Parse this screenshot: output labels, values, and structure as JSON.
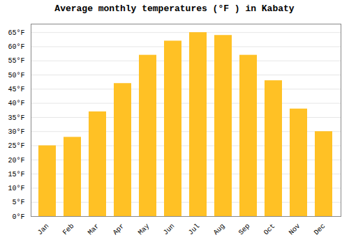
{
  "chart_data": {
    "type": "bar",
    "title": "Average monthly temperatures (°F ) in Kabaty",
    "categories": [
      "Jan",
      "Feb",
      "Mar",
      "Apr",
      "May",
      "Jun",
      "Jul",
      "Aug",
      "Sep",
      "Oct",
      "Nov",
      "Dec"
    ],
    "values": [
      25,
      28,
      37,
      47,
      57,
      62,
      65,
      64,
      57,
      48,
      38,
      30
    ],
    "color": "#FFC125",
    "ylim": [
      0,
      68
    ],
    "yticks": [
      {
        "value": 0,
        "label": "0°F"
      },
      {
        "value": 5,
        "label": "5°F"
      },
      {
        "value": 10,
        "label": "10°F"
      },
      {
        "value": 15,
        "label": "15°F"
      },
      {
        "value": 20,
        "label": "20°F"
      },
      {
        "value": 25,
        "label": "25°F"
      },
      {
        "value": 30,
        "label": "30°F"
      },
      {
        "value": 35,
        "label": "35°F"
      },
      {
        "value": 40,
        "label": "40°F"
      },
      {
        "value": 45,
        "label": "45°F"
      },
      {
        "value": 50,
        "label": "50°F"
      },
      {
        "value": 55,
        "label": "55°F"
      },
      {
        "value": 60,
        "label": "60°F"
      },
      {
        "value": 65,
        "label": "65°F"
      }
    ],
    "grid": true
  }
}
